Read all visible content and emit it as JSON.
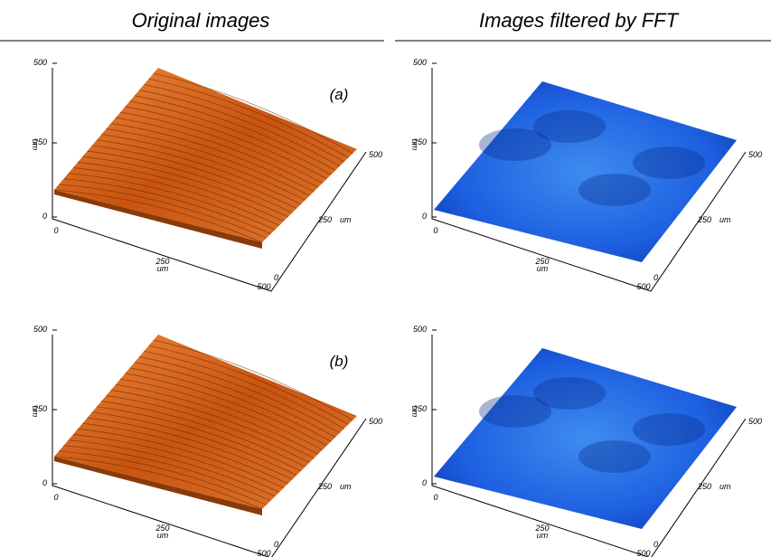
{
  "headers": [
    "Original images",
    "Images filtered by FFT"
  ],
  "panels": [
    {
      "label": "(a)",
      "z_axis": {
        "title": "um",
        "ticks": [
          "500",
          "250",
          "0"
        ]
      },
      "x_axis": {
        "title": "um",
        "ticks": [
          "0",
          "250",
          "500"
        ]
      },
      "y_axis": {
        "title": "um",
        "ticks": [
          "0",
          "250",
          "500"
        ]
      }
    },
    {
      "z_axis": {
        "title": "um",
        "ticks": [
          "500",
          "250",
          "0"
        ]
      },
      "x_axis": {
        "title": "um",
        "ticks": [
          "0",
          "250",
          "500"
        ]
      },
      "y_axis": {
        "title": "um",
        "ticks": [
          "0",
          "250",
          "500"
        ]
      }
    },
    {
      "label": "(b)",
      "z_axis": {
        "title": "um",
        "ticks": [
          "500",
          "250",
          "0"
        ]
      },
      "x_axis": {
        "title": "um",
        "ticks": [
          "0",
          "250",
          "500"
        ]
      },
      "y_axis": {
        "title": "um",
        "ticks": [
          "0",
          "250",
          "500"
        ]
      }
    },
    {
      "z_axis": {
        "title": "um",
        "ticks": [
          "500",
          "250",
          "0"
        ]
      },
      "x_axis": {
        "title": "um",
        "ticks": [
          "0",
          "250",
          "500"
        ]
      },
      "y_axis": {
        "title": "um",
        "ticks": [
          "0",
          "250",
          "500"
        ]
      }
    }
  ]
}
